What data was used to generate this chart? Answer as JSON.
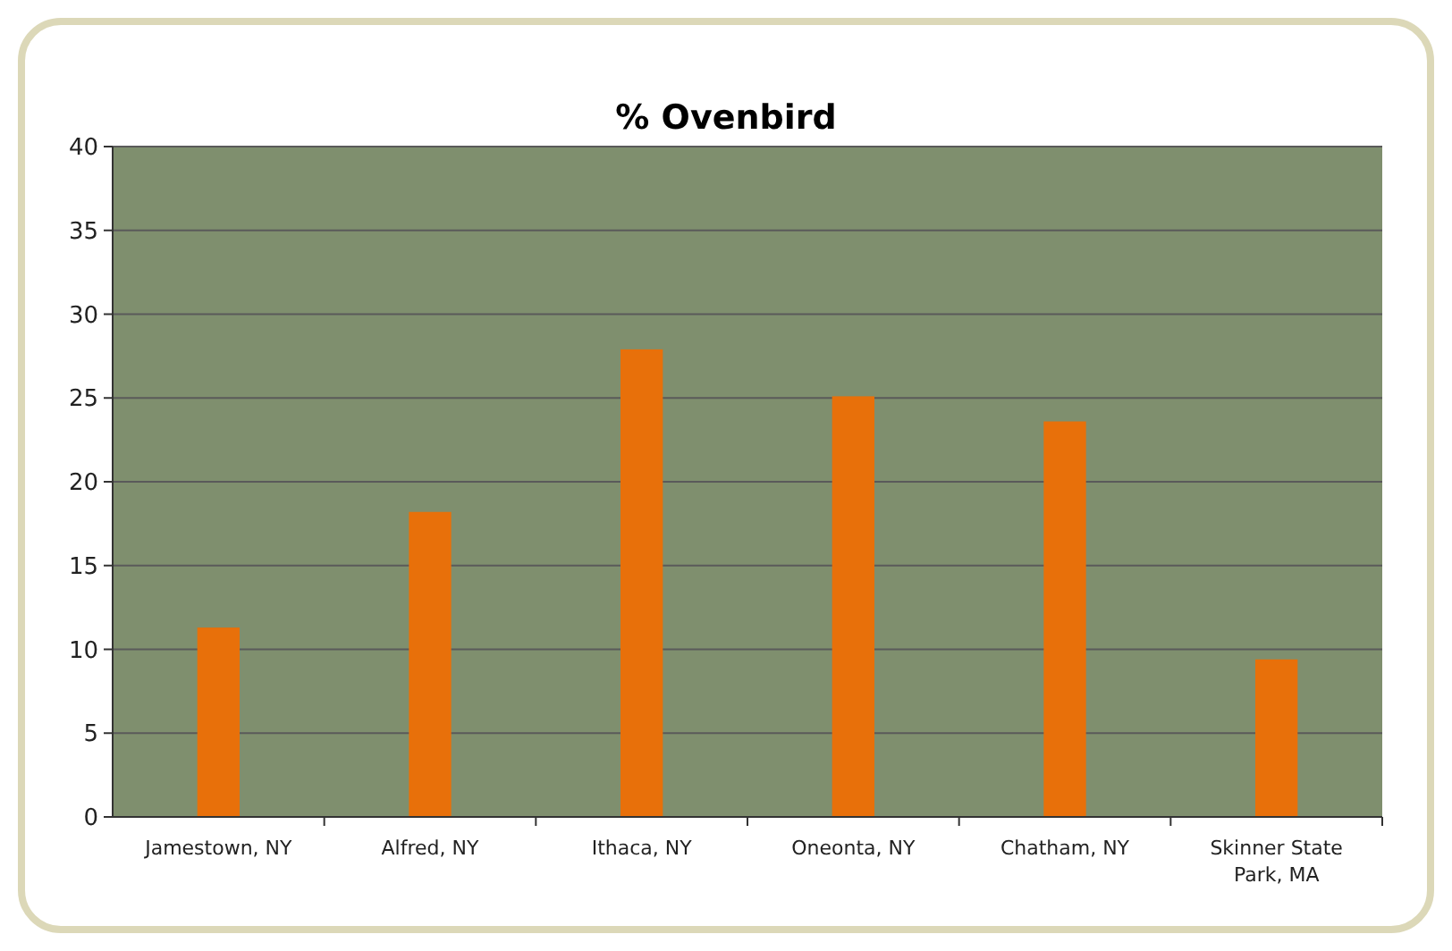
{
  "chart_data": {
    "type": "bar",
    "title": "% Ovenbird",
    "categories": [
      "Jamestown, NY",
      "Alfred, NY",
      "Ithaca, NY",
      "Oneonta, NY",
      "Chatham, NY",
      "Skinner State Park, MA"
    ],
    "values": [
      11.3,
      18.2,
      27.9,
      25.1,
      23.6,
      9.4
    ],
    "color": "#e8700a",
    "ylim": [
      0,
      40
    ],
    "yticks": [
      0,
      5,
      10,
      15,
      20,
      25,
      30,
      35,
      40
    ],
    "grid": "y"
  }
}
